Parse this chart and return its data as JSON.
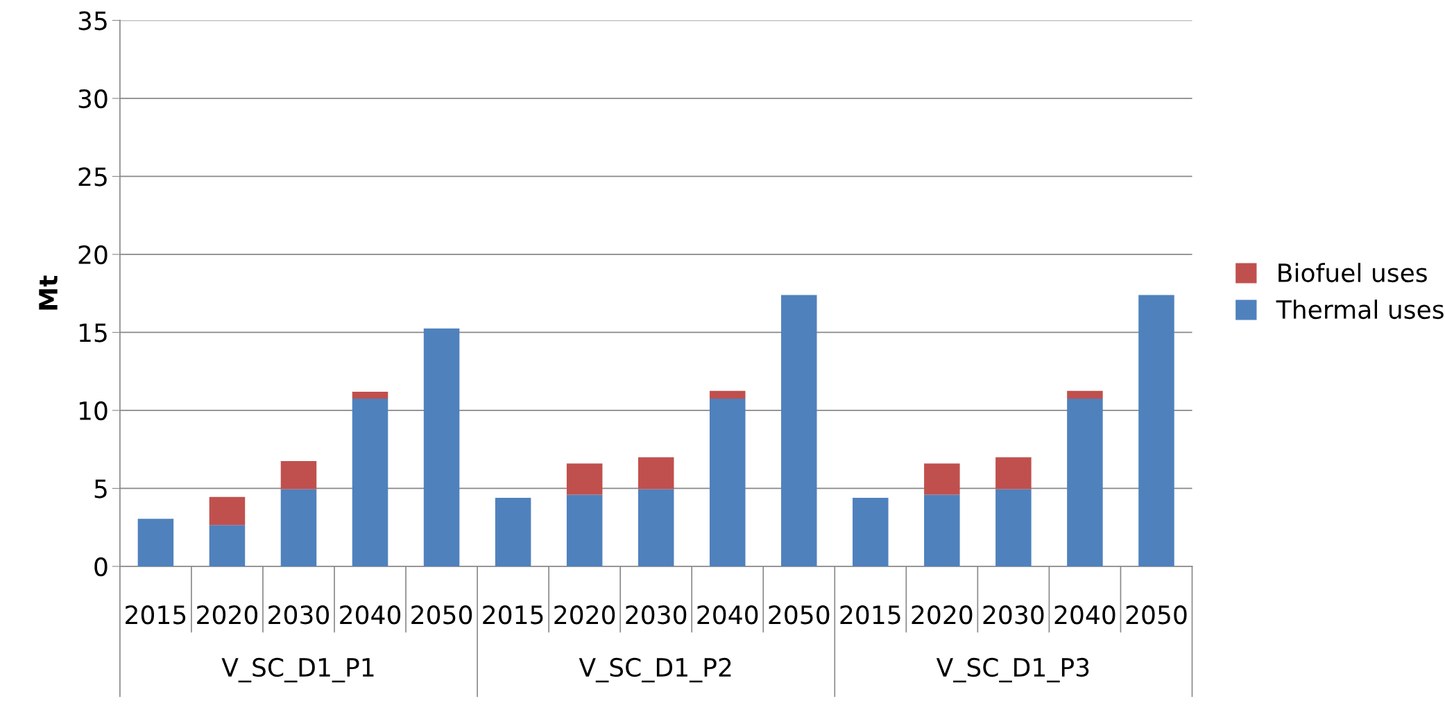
{
  "chart_data": {
    "type": "bar",
    "stacked": true,
    "ylabel": "Mt",
    "categories": [
      "2015",
      "2020",
      "2030",
      "2040",
      "2050",
      "2015",
      "2020",
      "2030",
      "2040",
      "2050",
      "2015",
      "2020",
      "2030",
      "2040",
      "2050"
    ],
    "series": [
      {
        "name": "Thermal uses",
        "color": "#4f81bd",
        "values": [
          3.05,
          2.65,
          4.95,
          10.75,
          15.25,
          4.4,
          4.6,
          4.95,
          10.75,
          17.4,
          4.4,
          4.6,
          4.95,
          10.75,
          17.4
        ]
      },
      {
        "name": "Biofuel uses",
        "color": "#c0504d",
        "values": [
          0,
          1.8,
          1.8,
          0.45,
          0,
          0,
          2.0,
          2.05,
          0.5,
          0,
          0,
          2.0,
          2.05,
          0.5,
          0
        ]
      }
    ],
    "ylim": [
      0,
      35
    ],
    "yticks": [
      0,
      5,
      10,
      15,
      20,
      25,
      30,
      35
    ],
    "grid": "y",
    "legend": "right",
    "annotations": [
      "V_SC_D1_P1",
      "V_SC_D1_P2",
      "V_SC_D1_P3"
    ]
  }
}
